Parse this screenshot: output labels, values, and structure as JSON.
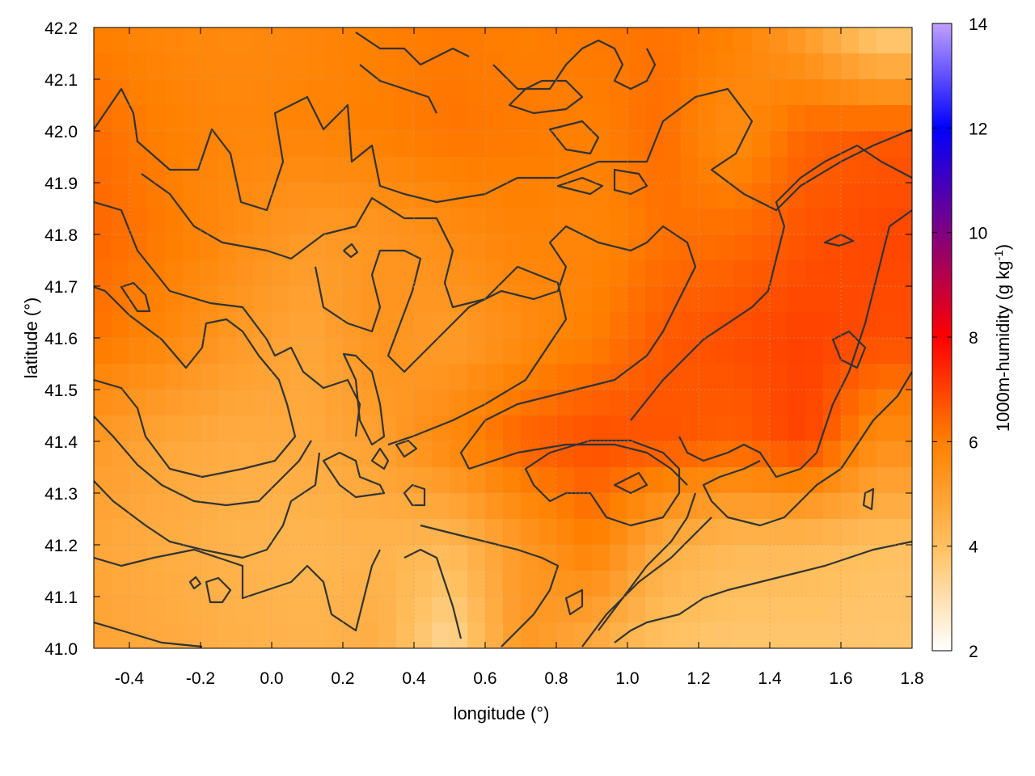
{
  "chart_data": {
    "type": "heatmap",
    "title": "",
    "xlabel": "longitude (°)",
    "ylabel": "latitude (°)",
    "xlim": [
      -0.5,
      1.8
    ],
    "ylim": [
      41.0,
      42.2
    ],
    "x_ticks": [
      "-0.4",
      "-0.2",
      "0.0",
      "0.2",
      "0.4",
      "0.6",
      "0.8",
      "1.0",
      "1.2",
      "1.4",
      "1.6",
      "1.8"
    ],
    "y_ticks": [
      "41.0",
      "41.1",
      "41.2",
      "41.3",
      "41.4",
      "41.5",
      "41.6",
      "41.7",
      "41.8",
      "41.9",
      "42.0",
      "42.1",
      "42.2"
    ],
    "grid": true,
    "colorbar": {
      "label_base": "1000m-humidity (g kg",
      "label_sup": "-1",
      "label_end": ")",
      "range": [
        2,
        14
      ],
      "ticks": [
        "2",
        "4",
        "6",
        "8",
        "10",
        "12",
        "14"
      ],
      "colormap": [
        {
          "value": 2,
          "color": "#ffffff"
        },
        {
          "value": 4,
          "color": "#ffc060"
        },
        {
          "value": 6,
          "color": "#ff8000"
        },
        {
          "value": 8,
          "color": "#ff0000"
        },
        {
          "value": 10,
          "color": "#800080"
        },
        {
          "value": 12,
          "color": "#0000ff"
        },
        {
          "value": 14,
          "color": "#c0a0ff"
        }
      ]
    },
    "contour_color": "#333333",
    "field_description_grid": {
      "x": [
        -0.5,
        -0.3,
        -0.1,
        0.1,
        0.3,
        0.5,
        0.7,
        0.9,
        1.1,
        1.3,
        1.5,
        1.7
      ],
      "y": [
        42.2,
        42.0,
        41.8,
        41.6,
        41.4,
        41.2,
        41.0
      ],
      "values": [
        [
          6.0,
          5.8,
          5.7,
          5.8,
          6.0,
          6.1,
          6.0,
          6.1,
          6.2,
          6.0,
          5.0,
          3.5
        ],
        [
          6.3,
          6.0,
          5.8,
          5.9,
          6.0,
          6.2,
          6.1,
          6.0,
          6.3,
          5.6,
          6.4,
          6.6
        ],
        [
          6.4,
          6.1,
          5.6,
          5.2,
          5.3,
          5.6,
          5.9,
          5.8,
          6.2,
          6.3,
          6.7,
          6.9
        ],
        [
          6.2,
          5.8,
          5.2,
          4.8,
          5.4,
          5.1,
          5.6,
          6.0,
          6.6,
          6.8,
          7.0,
          6.8
        ],
        [
          5.2,
          4.8,
          4.6,
          4.7,
          5.0,
          5.8,
          6.5,
          6.8,
          6.7,
          6.5,
          7.0,
          5.6
        ],
        [
          4.8,
          4.6,
          4.4,
          4.3,
          4.4,
          4.2,
          5.2,
          6.0,
          4.6,
          4.2,
          4.2,
          4.0
        ],
        [
          4.9,
          4.7,
          4.5,
          4.4,
          4.6,
          3.2,
          5.3,
          4.6,
          3.9,
          3.8,
          3.8,
          3.8
        ]
      ]
    }
  }
}
